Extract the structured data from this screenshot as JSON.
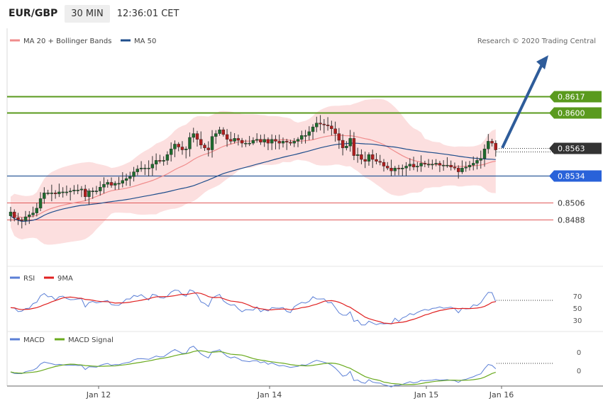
{
  "header": {
    "pair": "EUR/GBP",
    "timeframe": "30 MIN",
    "time": "12:36:01 CET"
  },
  "main_legend": {
    "ma20": "MA 20 + Bollinger Bands",
    "ma50": "MA 50",
    "copyright": "Research © 2020 Trading Central"
  },
  "rsi_legend": {
    "rsi": "RSI",
    "ma": "9MA"
  },
  "macd_legend": {
    "macd": "MACD",
    "signal": "MACD Signal"
  },
  "colors": {
    "green": "#5a9a1e",
    "blue": "#2e5c9a",
    "red": "#e05a5a",
    "dark": "#333333",
    "bb_fill": "#fcd9d9",
    "ma20": "#f08c8c",
    "ma50": "#1f4e8c",
    "rsi": "#5b7fd6",
    "rsi_ma": "#e02020",
    "macd": "#5b7fd6",
    "macd_signal": "#6aaa1e"
  },
  "chart_data": [
    {
      "type": "candlestick",
      "title": "EUR/GBP",
      "ylim": [
        0.847,
        0.863
      ],
      "x_ticks": [
        "Jan 12",
        "Jan 14",
        "Jan 15",
        "Jan 16"
      ],
      "levels": [
        {
          "label": "0.8617",
          "value": 0.8617,
          "kind": "resistance"
        },
        {
          "label": "0.8600",
          "value": 0.86,
          "kind": "resistance"
        },
        {
          "label": "0.8563",
          "value": 0.8563,
          "kind": "last"
        },
        {
          "label": "0.8534",
          "value": 0.8534,
          "kind": "pivot"
        },
        {
          "label": "0.8506",
          "value": 0.8506,
          "kind": "support"
        },
        {
          "label": "0.8488",
          "value": 0.8488,
          "kind": "support"
        }
      ],
      "ohlc_close": [
        0.8496,
        0.849,
        0.8488,
        0.8487,
        0.8491,
        0.8493,
        0.8495,
        0.85,
        0.851,
        0.8516,
        0.8516,
        0.8516,
        0.8515,
        0.8517,
        0.8517,
        0.8517,
        0.8518,
        0.8519,
        0.8519,
        0.852,
        0.8512,
        0.8518,
        0.8518,
        0.8518,
        0.8522,
        0.8525,
        0.8527,
        0.8524,
        0.8526,
        0.8526,
        0.8529,
        0.8531,
        0.8533,
        0.8538,
        0.8541,
        0.8542,
        0.8542,
        0.8542,
        0.8546,
        0.855,
        0.8549,
        0.855,
        0.8556,
        0.8562,
        0.8567,
        0.8564,
        0.8561,
        0.8562,
        0.8574,
        0.8578,
        0.8572,
        0.8566,
        0.8563,
        0.8561,
        0.8575,
        0.8578,
        0.8582,
        0.8577,
        0.8572,
        0.857,
        0.8573,
        0.8571,
        0.8568,
        0.8568,
        0.8568,
        0.8571,
        0.8572,
        0.8569,
        0.8572,
        0.8568,
        0.8572,
        0.857,
        0.8568,
        0.857,
        0.8569,
        0.8568,
        0.857,
        0.8572,
        0.8576,
        0.8576,
        0.858,
        0.8585,
        0.8589,
        0.8588,
        0.8587,
        0.8586,
        0.8583,
        0.8578,
        0.8571,
        0.8563,
        0.8565,
        0.8573,
        0.8555,
        0.8556,
        0.8551,
        0.8549,
        0.8556,
        0.8551,
        0.8549,
        0.8548,
        0.8544,
        0.8542,
        0.8539,
        0.8542,
        0.8541,
        0.8542,
        0.8544,
        0.8546,
        0.8543,
        0.8544,
        0.8547,
        0.8546,
        0.8546,
        0.8546,
        0.8547,
        0.8545,
        0.8545,
        0.8545,
        0.8543,
        0.8542,
        0.8538,
        0.8542,
        0.8543,
        0.8545,
        0.8547,
        0.855,
        0.8552,
        0.8562,
        0.857,
        0.8568,
        0.8561
      ],
      "bollinger_mid_ma20": {
        "start": 0.8502,
        "end": 0.8547
      },
      "ma50": {
        "start": 0.8505,
        "end": 0.8555
      },
      "forecast_arrow": {
        "from": 0.8563,
        "to": 0.8608
      }
    },
    {
      "type": "line",
      "title": "RSI",
      "yticks": [
        30,
        50,
        70
      ],
      "series": [
        {
          "name": "RSI"
        },
        {
          "name": "9MA"
        }
      ]
    },
    {
      "type": "line",
      "title": "MACD",
      "yticks": [
        0,
        0
      ],
      "series": [
        {
          "name": "MACD"
        },
        {
          "name": "MACD Signal"
        }
      ]
    }
  ]
}
